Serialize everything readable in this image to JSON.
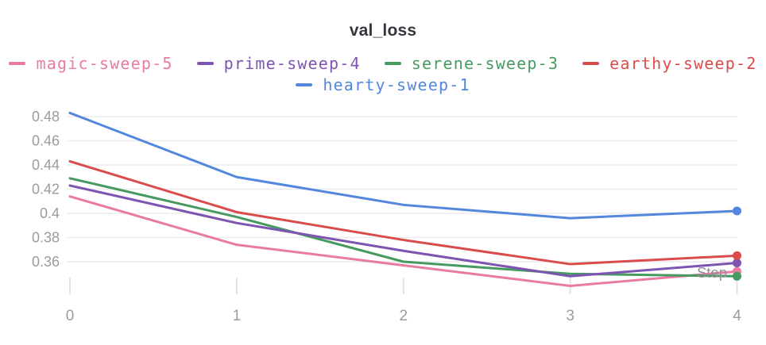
{
  "panel": {
    "title": "val_loss"
  },
  "legend": {
    "items": [
      {
        "label": "magic-sweep-5",
        "color": "#E87B9F"
      },
      {
        "label": "prime-sweep-4",
        "color": "#7D54B2"
      },
      {
        "label": "serene-sweep-3",
        "color": "#479A5F"
      },
      {
        "label": "earthy-sweep-2",
        "color": "#DA4C4C"
      },
      {
        "label": "hearty-sweep-1",
        "color": "#5387DD"
      }
    ]
  },
  "axes": {
    "x_label": "Step",
    "x_tick_labels": [
      "0",
      "1",
      "2",
      "3",
      "4"
    ],
    "y_tick_labels": [
      "0.48",
      "0.46",
      "0.44",
      "0.42",
      "0.4",
      "0.38",
      "0.36"
    ]
  },
  "chart_data": {
    "type": "line",
    "title": "val_loss",
    "xlabel": "Step",
    "ylabel": "",
    "x": [
      0,
      1,
      2,
      3,
      4
    ],
    "series": [
      {
        "name": "magic-sweep-5",
        "color": "#E87B9F",
        "values": [
          0.414,
          0.374,
          0.357,
          0.34,
          0.352
        ]
      },
      {
        "name": "prime-sweep-4",
        "color": "#7D54B2",
        "values": [
          0.423,
          0.392,
          0.369,
          0.348,
          0.359
        ]
      },
      {
        "name": "serene-sweep-3",
        "color": "#479A5F",
        "values": [
          0.429,
          0.397,
          0.36,
          0.35,
          0.348
        ]
      },
      {
        "name": "earthy-sweep-2",
        "color": "#DA4C4C",
        "values": [
          0.443,
          0.401,
          0.378,
          0.358,
          0.365
        ]
      },
      {
        "name": "hearty-sweep-1",
        "color": "#5387DD",
        "values": [
          0.483,
          0.43,
          0.407,
          0.396,
          0.402
        ]
      }
    ],
    "xlim": [
      0,
      4
    ],
    "ylim": [
      0.333,
      0.486
    ],
    "xticks": [
      0,
      1,
      2,
      3,
      4
    ],
    "yticks": [
      0.48,
      0.46,
      0.44,
      0.42,
      0.4,
      0.38,
      0.36
    ],
    "grid": "horizontal",
    "legend_position": "top",
    "end_markers": true
  },
  "style_colors": {
    "background": "#ffffff",
    "title_text": "#33373d",
    "gridline": "#ebebee",
    "tick_mark": "#e3e3e7",
    "tick_label": "#9b9ba1",
    "axis_title": "#90909a"
  }
}
